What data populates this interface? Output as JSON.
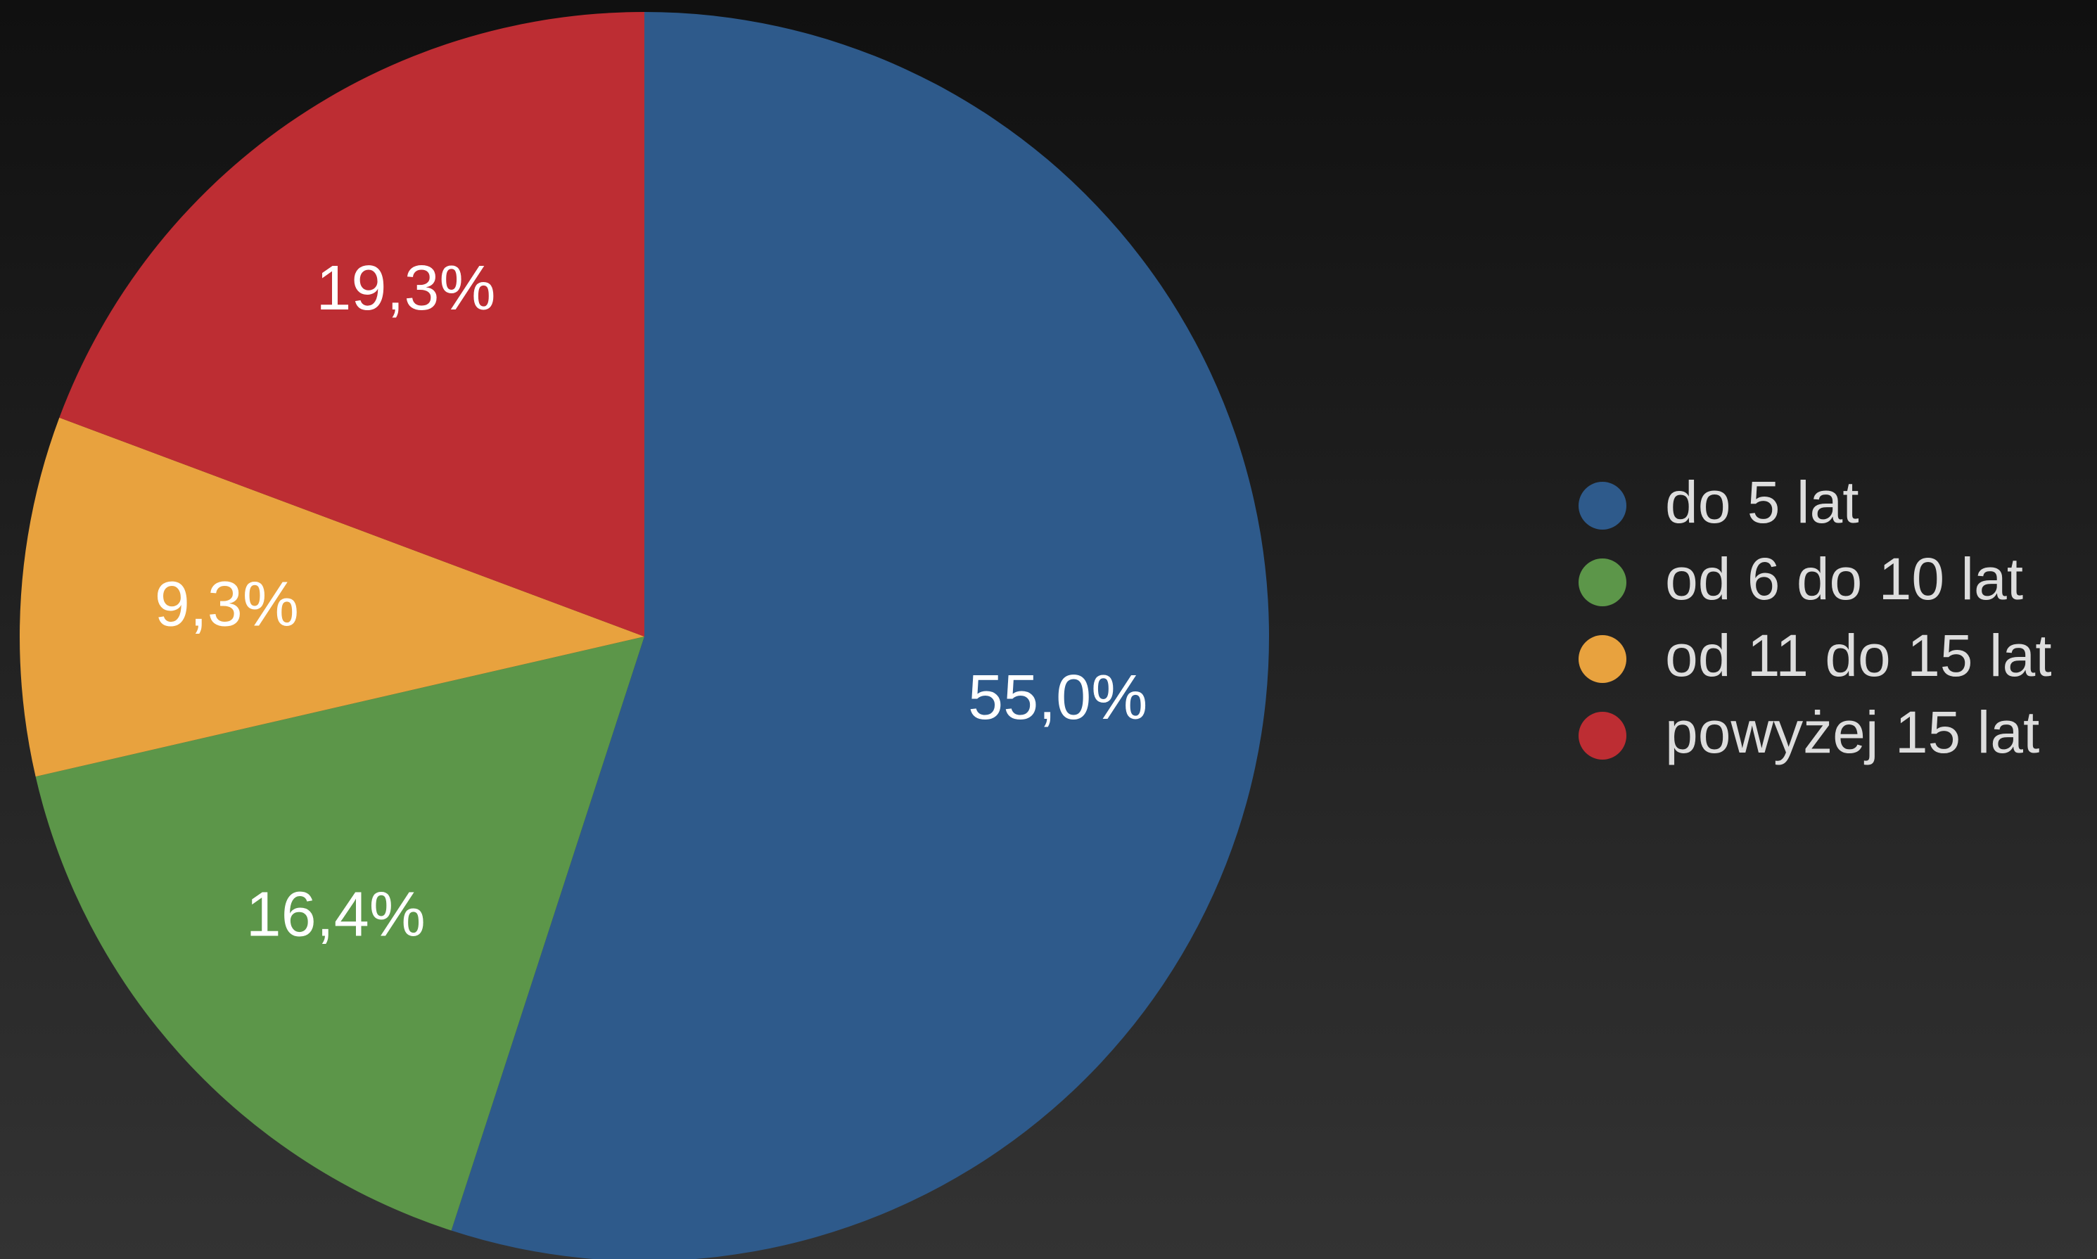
{
  "chart_data": {
    "type": "pie",
    "categories": [
      "do 5 lat",
      "od 6 do 10 lat",
      "od 11 do 15 lat",
      "powyżej 15 lat"
    ],
    "values": [
      55,
      16.4,
      9.3,
      19.3
    ],
    "value_labels": [
      "55,0%",
      "16,4%",
      "9,3%",
      "19,3%"
    ],
    "colors": [
      "#2e5a8b",
      "#5c9649",
      "#e8a23e",
      "#bd2d33"
    ],
    "legend": "right"
  }
}
